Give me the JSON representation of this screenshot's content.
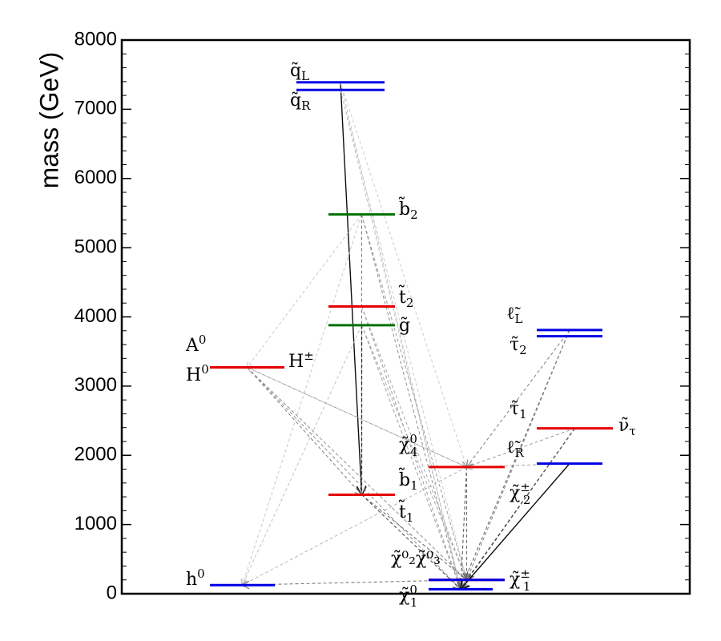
{
  "chart_data": {
    "type": "spectrum",
    "ylabel": "mass (GeV)",
    "ylim": [
      0,
      8000
    ],
    "yticks": [
      "0",
      "1000",
      "2000",
      "3000",
      "4000",
      "5000",
      "6000",
      "7000",
      "8000"
    ],
    "colors": {
      "blue": "#0000e6",
      "red": "#e60000",
      "green": "#007000"
    },
    "levels": [
      {
        "id": "qL",
        "group": "squarks",
        "mass": 7390,
        "color": "blue",
        "label": "q̃",
        "sub": "L"
      },
      {
        "id": "qR",
        "group": "squarks",
        "mass": 7280,
        "color": "blue",
        "label": "q̃",
        "sub": "R"
      },
      {
        "id": "b2",
        "group": "squarks",
        "mass": 5480,
        "color": "green",
        "label": "b̃",
        "sub": "2"
      },
      {
        "id": "t2",
        "group": "squarks",
        "mass": 4150,
        "color": "red",
        "label": "t̃",
        "sub": "2"
      },
      {
        "id": "gluino",
        "group": "squarks",
        "mass": 3880,
        "color": "green",
        "label": "g̃",
        "sub": ""
      },
      {
        "id": "b1",
        "group": "squarks",
        "mass": 1430,
        "color": "red",
        "label": "b̃",
        "sub": "1"
      },
      {
        "id": "t1",
        "group": "squarks",
        "mass": 1430,
        "color": "red",
        "label": "t̃",
        "sub": "1"
      },
      {
        "id": "A0",
        "group": "higgs",
        "mass": 3270,
        "color": "blue",
        "label": "A",
        "sup": "0"
      },
      {
        "id": "H0",
        "group": "higgs",
        "mass": 3270,
        "color": "red",
        "label": "H",
        "sup": "0"
      },
      {
        "id": "Hpm",
        "group": "higgs",
        "mass": 3270,
        "color": "red",
        "label": "H",
        "sup": "±"
      },
      {
        "id": "h0",
        "group": "higgs",
        "mass": 125,
        "color": "blue",
        "label": "h",
        "sup": "0"
      },
      {
        "id": "chi40",
        "group": "gauginos",
        "mass": 1830,
        "color": "red",
        "label": "χ̃",
        "sup": "0",
        "sub": "4"
      },
      {
        "id": "chi20chi30",
        "group": "gauginos",
        "mass": 200,
        "color": "red",
        "label": "χ̃⁰₂χ̃⁰₃"
      },
      {
        "id": "chi1pm",
        "group": "gauginos",
        "mass": 200,
        "color": "blue",
        "label": "χ̃",
        "sup": "±",
        "sub": "1"
      },
      {
        "id": "chi10",
        "group": "gauginos",
        "mass": 65,
        "color": "blue",
        "label": "χ̃",
        "sup": "0",
        "sub": "1"
      },
      {
        "id": "eL",
        "group": "sleptons",
        "mass": 3810,
        "color": "blue",
        "label": "ℓ̃",
        "sub": "L"
      },
      {
        "id": "tau2",
        "group": "sleptons",
        "mass": 3720,
        "color": "blue",
        "label": "τ̃",
        "sub": "2"
      },
      {
        "id": "nutau",
        "group": "sleptons",
        "mass": 2390,
        "color": "red",
        "label": "ν̃",
        "sub": "τ"
      },
      {
        "id": "tau1",
        "group": "sleptons",
        "mass": 2390,
        "color": "red",
        "label": "τ̃",
        "sub": "1"
      },
      {
        "id": "eR",
        "group": "sleptons",
        "mass": 1880,
        "color": "blue",
        "label": "ℓ̃",
        "sub": "R"
      },
      {
        "id": "chi2pm",
        "group": "sleptons",
        "mass": 1880,
        "color": "blue",
        "label": "χ̃",
        "sup": "±",
        "sub": "2"
      }
    ],
    "decays": [
      {
        "from": "qL",
        "to": "b1",
        "strength": 0.95
      },
      {
        "from": "qL",
        "to": "chi10",
        "strength": 0.15
      },
      {
        "from": "qL",
        "to": "chi40",
        "strength": 0.1
      },
      {
        "from": "qR",
        "to": "chi10",
        "strength": 0.15
      },
      {
        "from": "qR",
        "to": "chi1pm",
        "strength": 0.1
      },
      {
        "from": "b2",
        "to": "chi10",
        "strength": 0.35
      },
      {
        "from": "b2",
        "to": "chi1pm",
        "strength": 0.3
      },
      {
        "from": "b2",
        "to": "b1",
        "strength": 0.45
      },
      {
        "from": "b2",
        "to": "A0",
        "strength": 0.12
      },
      {
        "from": "b2",
        "to": "h0",
        "strength": 0.12
      },
      {
        "from": "t2",
        "to": "chi10",
        "strength": 0.3
      },
      {
        "from": "t2",
        "to": "chi1pm",
        "strength": 0.25
      },
      {
        "from": "gluino",
        "to": "b1",
        "strength": 0.8
      },
      {
        "from": "gluino",
        "to": "chi10",
        "strength": 0.3
      },
      {
        "from": "gluino",
        "to": "chi1pm",
        "strength": 0.25
      },
      {
        "from": "gluino",
        "to": "chi20chi30",
        "strength": 0.2
      },
      {
        "from": "gluino",
        "to": "h0",
        "strength": 0.15
      },
      {
        "from": "A0",
        "to": "b1",
        "strength": 0.4
      },
      {
        "from": "A0",
        "to": "chi10",
        "strength": 0.35
      },
      {
        "from": "A0",
        "to": "chi20chi30",
        "strength": 0.3
      },
      {
        "from": "A0",
        "to": "chi40",
        "strength": 0.3
      },
      {
        "from": "H0",
        "to": "chi1pm",
        "strength": 0.3
      },
      {
        "from": "b1",
        "to": "chi10",
        "strength": 0.6
      },
      {
        "from": "b1",
        "to": "chi1pm",
        "strength": 0.5
      },
      {
        "from": "chi40",
        "to": "chi10",
        "strength": 0.55
      },
      {
        "from": "chi40",
        "to": "chi1pm",
        "strength": 0.5
      },
      {
        "from": "chi40",
        "to": "h0",
        "strength": 0.2
      },
      {
        "from": "chi40",
        "to": "A0",
        "strength": 0.15
      },
      {
        "from": "chi1pm",
        "to": "h0",
        "strength": 0.45
      },
      {
        "from": "eL",
        "to": "chi40",
        "strength": 0.4
      },
      {
        "from": "eL",
        "to": "chi10",
        "strength": 0.5
      },
      {
        "from": "eL",
        "to": "chi1pm",
        "strength": 0.4
      },
      {
        "from": "nutau",
        "to": "chi10",
        "strength": 0.7
      },
      {
        "from": "nutau",
        "to": "chi1pm",
        "strength": 0.6
      },
      {
        "from": "nutau",
        "to": "chi40",
        "strength": 0.3
      },
      {
        "from": "eR",
        "to": "chi10",
        "strength": 0.95
      },
      {
        "from": "eR",
        "to": "chi40",
        "strength": 0.25
      }
    ]
  }
}
